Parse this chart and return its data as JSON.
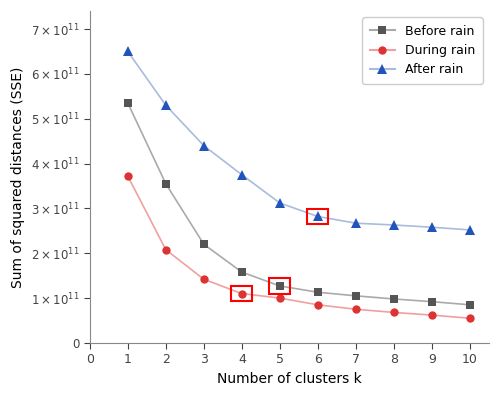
{
  "k": [
    1,
    2,
    3,
    4,
    5,
    6,
    7,
    8,
    9,
    10
  ],
  "before_rain": [
    535000000000.0,
    355000000000.0,
    220000000000.0,
    158000000000.0,
    127000000000.0,
    113000000000.0,
    105000000000.0,
    98000000000.0,
    92000000000.0,
    85000000000.0
  ],
  "during_rain": [
    372000000000.0,
    208000000000.0,
    142000000000.0,
    110000000000.0,
    100000000000.0,
    85000000000.0,
    75000000000.0,
    68000000000.0,
    62000000000.0,
    55000000000.0
  ],
  "after_rain": [
    650000000000.0,
    530000000000.0,
    440000000000.0,
    375000000000.0,
    312000000000.0,
    282000000000.0,
    267000000000.0,
    263000000000.0,
    258000000000.0,
    252000000000.0
  ],
  "before_color": "#555555",
  "during_color": "#dd3333",
  "after_color": "#2255bb",
  "line_color_before": "#aaaaaa",
  "line_color_during": "#f0a0a0",
  "line_color_after": "#aabbdd",
  "highlight_before_k": 5,
  "highlight_during_k": 4,
  "highlight_after_k": 6,
  "xlabel": "Number of clusters k",
  "ylabel": "Sum of squared distances (SSE)",
  "xlim": [
    0,
    10.5
  ],
  "ylim": [
    0,
    740000000000.0
  ],
  "ytick_vals": [
    0,
    100000000000.0,
    200000000000.0,
    300000000000.0,
    400000000000.0,
    500000000000.0,
    600000000000.0,
    700000000000.0
  ],
  "ytick_labels": [
    "0",
    "1",
    "2",
    "3",
    "4",
    "5",
    "6",
    "7"
  ],
  "xticks": [
    0,
    1,
    2,
    3,
    4,
    5,
    6,
    7,
    8,
    9,
    10
  ],
  "legend_labels": [
    "Before rain",
    "During rain",
    "After rain"
  ],
  "legend_loc": "upper right"
}
